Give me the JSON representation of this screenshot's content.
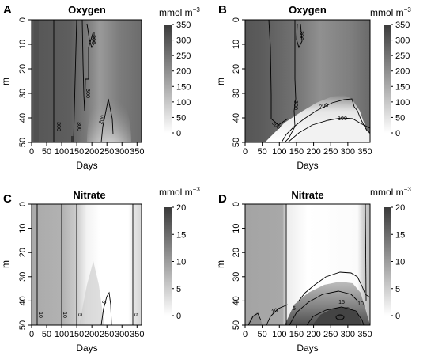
{
  "chart_data": [
    {
      "type": "heatmap",
      "panel_label": "A",
      "title": "Oxygen",
      "xlabel": "Days",
      "ylabel": "m",
      "unit": "mmol m",
      "unit_exp": "−3",
      "xlim": [
        0,
        365
      ],
      "ylim": [
        50,
        0
      ],
      "xticks": [
        "0",
        "50",
        "100",
        "150",
        "200",
        "250",
        "300",
        "350"
      ],
      "yticks": [
        "0",
        "10",
        "20",
        "30",
        "40",
        "50"
      ],
      "colorbar": {
        "min": 0,
        "max": 350,
        "ticks": [
          "0",
          "50",
          "100",
          "150",
          "200",
          "250",
          "300",
          "350"
        ],
        "low_color": "#ffffff",
        "high_color": "#3a3a3a"
      },
      "contour_labels": [
        "300",
        "300",
        "300",
        "300",
        "200"
      ]
    },
    {
      "type": "heatmap",
      "panel_label": "B",
      "title": "Oxygen",
      "xlabel": "Days",
      "ylabel": "m",
      "unit": "mmol m",
      "unit_exp": "−3",
      "xlim": [
        0,
        365
      ],
      "ylim": [
        50,
        0
      ],
      "xticks": [
        "0",
        "50",
        "100",
        "150",
        "200",
        "250",
        "300",
        "350"
      ],
      "yticks": [
        "0",
        "10",
        "20",
        "30",
        "40",
        "50"
      ],
      "colorbar": {
        "min": 0,
        "max": 350,
        "ticks": [
          "0",
          "50",
          "100",
          "150",
          "200",
          "250",
          "300",
          "350"
        ],
        "low_color": "#ffffff",
        "high_color": "#3a3a3a"
      },
      "contour_labels": [
        "300",
        "300",
        "300",
        "200",
        "100"
      ]
    },
    {
      "type": "heatmap",
      "panel_label": "C",
      "title": "Nitrate",
      "xlabel": "Days",
      "ylabel": "m",
      "unit": "mmol m",
      "unit_exp": "−3",
      "xlim": [
        0,
        365
      ],
      "ylim": [
        50,
        0
      ],
      "xticks": [
        "0",
        "50",
        "100",
        "150",
        "200",
        "250",
        "300",
        "350"
      ],
      "yticks": [
        "0",
        "10",
        "20",
        "30",
        "40",
        "50"
      ],
      "colorbar": {
        "min": 0,
        "max": 20,
        "ticks": [
          "0",
          "5",
          "10",
          "15",
          "20"
        ],
        "low_color": "#ffffff",
        "high_color": "#3a3a3a"
      },
      "contour_labels": [
        "10",
        "10",
        "5",
        "5",
        "5"
      ]
    },
    {
      "type": "heatmap",
      "panel_label": "D",
      "title": "Nitrate",
      "xlabel": "Days",
      "ylabel": "m",
      "unit": "mmol m",
      "unit_exp": "−3",
      "xlim": [
        0,
        365
      ],
      "ylim": [
        50,
        0
      ],
      "xticks": [
        "0",
        "50",
        "100",
        "150",
        "200",
        "250",
        "300",
        "350"
      ],
      "yticks": [
        "0",
        "10",
        "20",
        "30",
        "40",
        "50"
      ],
      "colorbar": {
        "min": 0,
        "max": 20,
        "ticks": [
          "0",
          "5",
          "10",
          "15",
          "20"
        ],
        "low_color": "#ffffff",
        "high_color": "#3a3a3a"
      },
      "contour_labels": [
        "10",
        "5",
        "15",
        "10"
      ]
    }
  ]
}
